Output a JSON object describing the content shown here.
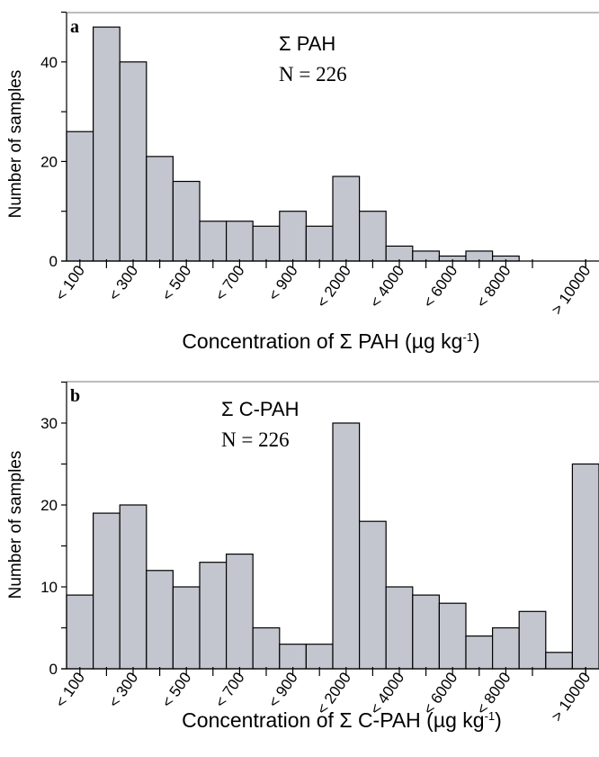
{
  "chart_data": [
    {
      "type": "bar",
      "panel": "a",
      "annotation_line1": "Σ PAH",
      "annotation_line2": "N = 226",
      "ylabel": "Number of samples",
      "xlabel": "Concentration  of Σ PAH (µg kg",
      "xlabel_superscript": "-1",
      "xlabel_suffix": ")",
      "ylim": [
        0,
        50
      ],
      "yticks": [
        0,
        20,
        40
      ],
      "xtick_labels": [
        "< 100",
        "< 300",
        "< 500",
        "< 700",
        "< 900",
        "< 2000",
        "< 4000",
        "< 6000",
        "< 8000",
        "> 10000"
      ],
      "values": [
        26,
        47,
        40,
        21,
        16,
        8,
        8,
        7,
        10,
        7,
        17,
        10,
        3,
        2,
        1,
        2,
        1,
        0,
        0,
        0
      ],
      "grid": false
    },
    {
      "type": "bar",
      "panel": "b",
      "annotation_line1": "Σ C-PAH",
      "annotation_line2": "N = 226",
      "ylabel": "Number of samples",
      "xlabel": "Concentration of Σ C-PAH (µg kg",
      "xlabel_superscript": "-1",
      "xlabel_suffix": ")",
      "ylim": [
        0,
        35
      ],
      "yticks": [
        0,
        10,
        20,
        30
      ],
      "xtick_labels": [
        "< 100",
        "< 300",
        "< 500",
        "< 700",
        "< 900",
        "< 2000",
        "< 4000",
        "< 6000",
        "< 8000",
        "> 10000"
      ],
      "values": [
        9,
        19,
        20,
        12,
        10,
        13,
        14,
        5,
        3,
        3,
        30,
        18,
        10,
        9,
        8,
        4,
        5,
        7,
        2,
        25
      ],
      "grid": false
    }
  ]
}
